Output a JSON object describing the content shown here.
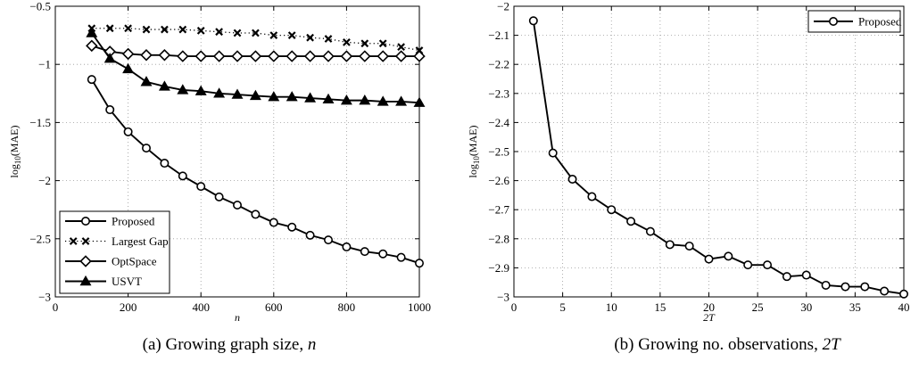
{
  "chart_data": [
    {
      "type": "line",
      "xlabel": "n",
      "ylabel": "log10(MAE)",
      "ylabel_parts": {
        "base": "log",
        "sub": "10",
        "rest": "(MAE)"
      },
      "xlim": [
        0,
        1000
      ],
      "ylim": [
        -3,
        -0.5
      ],
      "xticks": [
        0,
        200,
        400,
        600,
        800,
        1000
      ],
      "yticks": [
        -3,
        -2.5,
        -2,
        -1.5,
        -1,
        -0.5
      ],
      "ytick_labels": [
        "−3",
        "−2.5",
        "−2",
        "−1.5",
        "−1",
        "−0.5"
      ],
      "grid": true,
      "legend_position": "bottom-left",
      "x": [
        100,
        150,
        200,
        250,
        300,
        350,
        400,
        450,
        500,
        550,
        600,
        650,
        700,
        750,
        800,
        850,
        900,
        950,
        1000
      ],
      "series": [
        {
          "name": "Proposed",
          "line": "solid",
          "marker": "circle",
          "values": [
            -1.13,
            -1.39,
            -1.58,
            -1.72,
            -1.85,
            -1.96,
            -2.05,
            -2.14,
            -2.21,
            -2.29,
            -2.36,
            -2.4,
            -2.47,
            -2.51,
            -2.57,
            -2.61,
            -2.63,
            -2.66,
            -2.71
          ]
        },
        {
          "name": "Largest Gap",
          "line": "dotted",
          "marker": "x",
          "values": [
            -0.69,
            -0.69,
            -0.69,
            -0.7,
            -0.7,
            -0.7,
            -0.71,
            -0.72,
            -0.73,
            -0.73,
            -0.75,
            -0.75,
            -0.77,
            -0.78,
            -0.81,
            -0.82,
            -0.82,
            -0.85,
            -0.88
          ]
        },
        {
          "name": "OptSpace",
          "line": "solid",
          "marker": "diamond",
          "values": [
            -0.84,
            -0.89,
            -0.91,
            -0.92,
            -0.92,
            -0.93,
            -0.93,
            -0.93,
            -0.93,
            -0.93,
            -0.93,
            -0.93,
            -0.93,
            -0.93,
            -0.93,
            -0.93,
            -0.93,
            -0.93,
            -0.93
          ]
        },
        {
          "name": "USVT",
          "line": "solid",
          "marker": "triangle",
          "values": [
            -0.73,
            -0.95,
            -1.04,
            -1.15,
            -1.19,
            -1.22,
            -1.23,
            -1.25,
            -1.26,
            -1.27,
            -1.28,
            -1.28,
            -1.29,
            -1.3,
            -1.31,
            -1.31,
            -1.32,
            -1.32,
            -1.33
          ]
        }
      ]
    },
    {
      "type": "line",
      "xlabel": "2T",
      "ylabel": "log10(MAE)",
      "ylabel_parts": {
        "base": "log",
        "sub": "10",
        "rest": "(MAE)"
      },
      "xlim": [
        0,
        40
      ],
      "ylim": [
        -3,
        -2
      ],
      "xticks": [
        0,
        5,
        10,
        15,
        20,
        25,
        30,
        35,
        40
      ],
      "yticks": [
        -3,
        -2.9,
        -2.8,
        -2.7,
        -2.6,
        -2.5,
        -2.4,
        -2.3,
        -2.2,
        -2.1,
        -2
      ],
      "ytick_labels": [
        "−3",
        "−2.9",
        "−2.8",
        "−2.7",
        "−2.6",
        "−2.5",
        "−2.4",
        "−2.3",
        "−2.2",
        "−2.1",
        "−2"
      ],
      "grid": true,
      "legend_position": "top-right",
      "x": [
        2,
        4,
        6,
        8,
        10,
        12,
        14,
        16,
        18,
        20,
        22,
        24,
        26,
        28,
        30,
        32,
        34,
        36,
        38,
        40
      ],
      "series": [
        {
          "name": "Proposed",
          "line": "solid",
          "marker": "circle",
          "values": [
            -2.05,
            -2.505,
            -2.595,
            -2.655,
            -2.7,
            -2.74,
            -2.775,
            -2.82,
            -2.825,
            -2.87,
            -2.86,
            -2.89,
            -2.89,
            -2.93,
            -2.925,
            -2.96,
            -2.965,
            -2.965,
            -2.98,
            -2.99
          ]
        }
      ]
    }
  ],
  "captions": [
    {
      "label": "(a) Growing graph size,",
      "symbol": "n"
    },
    {
      "label": "(b) Growing no. observations,",
      "symbol": "2T"
    }
  ]
}
